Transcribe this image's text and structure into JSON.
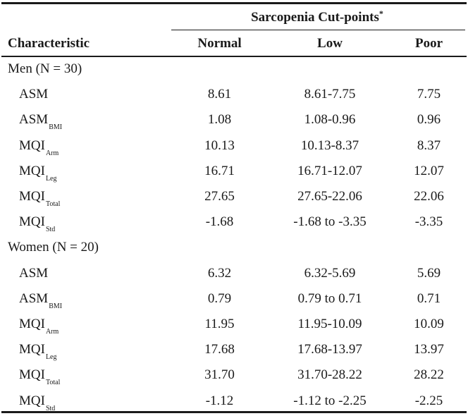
{
  "table": {
    "group_header": "Sarcopenia Cut-points",
    "group_header_mark": "*",
    "columns": [
      "Characteristic",
      "Normal",
      "Low",
      "Poor"
    ],
    "sections": [
      {
        "title": "Men (N = 30)",
        "rows": [
          {
            "label": "ASM",
            "sub": "",
            "normal": "8.61",
            "low": "8.61-7.75",
            "poor": "7.75"
          },
          {
            "label": "ASM",
            "sub": "BMI",
            "normal": "1.08",
            "low": "1.08-0.96",
            "poor": "0.96"
          },
          {
            "label": "MQI",
            "sub": "Arm",
            "normal": "10.13",
            "low": "10.13-8.37",
            "poor": "8.37"
          },
          {
            "label": "MQI",
            "sub": "Leg",
            "normal": "16.71",
            "low": "16.71-12.07",
            "poor": "12.07"
          },
          {
            "label": "MQI",
            "sub": "Total",
            "normal": "27.65",
            "low": "27.65-22.06",
            "poor": "22.06"
          },
          {
            "label": "MQI",
            "sub": "Std",
            "normal": "-1.68",
            "low": "-1.68 to -3.35",
            "poor": "-3.35"
          }
        ]
      },
      {
        "title": "Women (N = 20)",
        "rows": [
          {
            "label": "ASM",
            "sub": "",
            "normal": "6.32",
            "low": "6.32-5.69",
            "poor": "5.69"
          },
          {
            "label": "ASM",
            "sub": "BMI",
            "normal": "0.79",
            "low": "0.79 to 0.71",
            "poor": "0.71"
          },
          {
            "label": "MQI",
            "sub": "Arm",
            "normal": "11.95",
            "low": "11.95-10.09",
            "poor": "10.09"
          },
          {
            "label": "MQI",
            "sub": "Leg",
            "normal": "17.68",
            "low": "17.68-13.97",
            "poor": "13.97"
          },
          {
            "label": "MQI",
            "sub": "Total",
            "normal": "31.70",
            "low": "31.70-28.22",
            "poor": "28.22"
          },
          {
            "label": "MQI",
            "sub": "Std",
            "normal": "-1.12",
            "low": "-1.12 to -2.25",
            "poor": "-2.25"
          }
        ]
      }
    ]
  }
}
